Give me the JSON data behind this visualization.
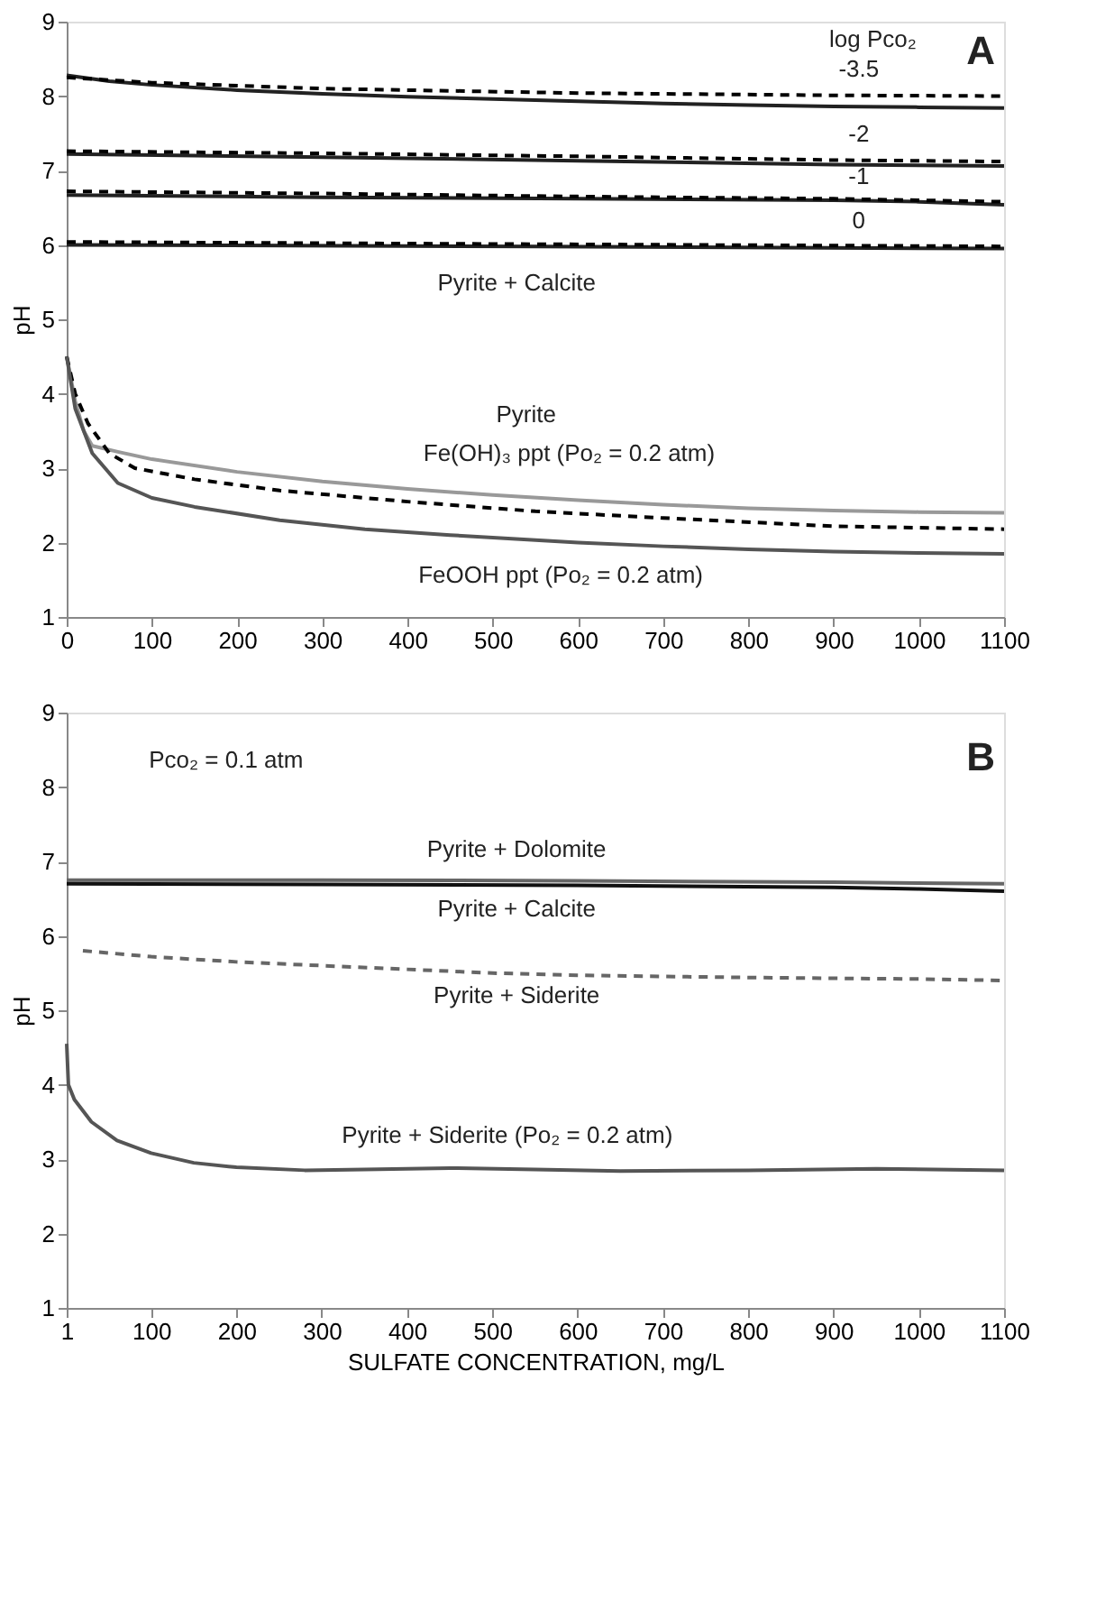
{
  "chart_data": [
    {
      "type": "line",
      "ylabel": "pH",
      "xlim": [
        0,
        1100
      ],
      "ylim": [
        1,
        9
      ],
      "xticks": [
        0,
        100,
        200,
        300,
        400,
        500,
        600,
        700,
        800,
        900,
        1000,
        1100
      ],
      "yticks": [
        1,
        2,
        3,
        4,
        5,
        6,
        7,
        8,
        9
      ],
      "grid": false,
      "series": [
        {
          "color": "#222222",
          "line_style": "solid",
          "x": [
            0,
            50,
            100,
            200,
            300,
            400,
            500,
            600,
            700,
            800,
            900,
            1000,
            1100
          ],
          "values": [
            8.28,
            8.2,
            8.15,
            8.08,
            8.03,
            7.99,
            7.96,
            7.93,
            7.9,
            7.88,
            7.86,
            7.85,
            7.84
          ]
        },
        {
          "color": "#000000",
          "line_style": "dashed",
          "x": [
            0,
            100,
            300,
            600,
            900,
            1100
          ],
          "values": [
            8.25,
            8.18,
            8.1,
            8.04,
            8.01,
            8.0
          ]
        },
        {
          "color": "#222222",
          "line_style": "solid",
          "x": [
            0,
            300,
            600,
            900,
            1100
          ],
          "values": [
            7.22,
            7.18,
            7.13,
            7.08,
            7.06
          ]
        },
        {
          "color": "#000000",
          "line_style": "dashed",
          "x": [
            0,
            300,
            600,
            900,
            1100
          ],
          "values": [
            7.26,
            7.23,
            7.19,
            7.14,
            7.12
          ]
        },
        {
          "color": "#222222",
          "line_style": "solid",
          "x": [
            0,
            300,
            600,
            900,
            1000,
            1100
          ],
          "values": [
            6.67,
            6.64,
            6.62,
            6.6,
            6.58,
            6.54
          ]
        },
        {
          "color": "#000000",
          "line_style": "dashed",
          "x": [
            0,
            300,
            600,
            900,
            1100
          ],
          "values": [
            6.72,
            6.69,
            6.65,
            6.62,
            6.58
          ]
        },
        {
          "color": "#222222",
          "line_style": "solid",
          "x": [
            0,
            550,
            1100
          ],
          "values": [
            6.0,
            5.98,
            5.95
          ]
        },
        {
          "color": "#000000",
          "line_style": "dashed",
          "x": [
            0,
            550,
            1100
          ],
          "values": [
            6.04,
            6.01,
            5.98
          ]
        },
        {
          "color": "#999999",
          "line_style": "solid",
          "x": [
            0,
            10,
            20,
            30,
            60,
            100,
            200,
            300,
            400,
            500,
            600,
            700,
            800,
            900,
            1000,
            1100
          ],
          "values": [
            4.5,
            3.9,
            3.5,
            3.3,
            3.22,
            3.12,
            2.95,
            2.82,
            2.72,
            2.64,
            2.57,
            2.51,
            2.46,
            2.43,
            2.41,
            2.4
          ]
        },
        {
          "color": "#000000",
          "line_style": "dashed",
          "x": [
            0,
            10,
            25,
            50,
            80,
            150,
            250,
            400,
            550,
            700,
            900,
            1100
          ],
          "values": [
            4.5,
            4.0,
            3.6,
            3.2,
            3.0,
            2.85,
            2.7,
            2.55,
            2.42,
            2.33,
            2.22,
            2.18
          ]
        },
        {
          "color": "#555555",
          "line_style": "solid",
          "x": [
            0,
            10,
            30,
            60,
            100,
            150,
            250,
            350,
            450,
            600,
            700,
            800,
            900,
            1000,
            1100
          ],
          "values": [
            4.5,
            3.8,
            3.2,
            2.8,
            2.6,
            2.48,
            2.3,
            2.18,
            2.1,
            2.0,
            1.95,
            1.91,
            1.88,
            1.86,
            1.85
          ]
        }
      ],
      "annotations": [
        "log Pco₂",
        "A",
        "-3.5",
        "-2",
        "-1",
        "0",
        "Pyrite + Calcite",
        "Pyrite",
        "Fe(OH)₃ ppt (Po₂ = 0.2 atm)",
        "FeOOH ppt (Po₂ = 0.2 atm)"
      ]
    },
    {
      "type": "line",
      "ylabel": "pH",
      "xlabel": "SULFATE CONCENTRATION, mg/L",
      "xlim": [
        1,
        1100
      ],
      "ylim": [
        1,
        9
      ],
      "xticks": [
        1,
        100,
        200,
        300,
        400,
        500,
        600,
        700,
        800,
        900,
        1000,
        1100
      ],
      "yticks": [
        1,
        2,
        3,
        4,
        5,
        6,
        7,
        8,
        9
      ],
      "grid": false,
      "series": [
        {
          "color": "#666666",
          "line_style": "solid",
          "x": [
            1,
            300,
            600,
            900,
            1100
          ],
          "values": [
            6.75,
            6.75,
            6.74,
            6.72,
            6.7
          ]
        },
        {
          "color": "#111111",
          "line_style": "solid",
          "x": [
            1,
            300,
            600,
            900,
            1000,
            1100
          ],
          "values": [
            6.7,
            6.69,
            6.68,
            6.65,
            6.63,
            6.6
          ]
        },
        {
          "color": "#666666",
          "line_style": "dashed",
          "x": [
            20,
            100,
            200,
            300,
            400,
            500,
            600,
            800,
            1000,
            1100
          ],
          "values": [
            5.8,
            5.72,
            5.65,
            5.6,
            5.55,
            5.5,
            5.47,
            5.44,
            5.42,
            5.4
          ]
        },
        {
          "color": "#555555",
          "line_style": "solid",
          "x": [
            1,
            3,
            10,
            30,
            60,
            100,
            150,
            200,
            280,
            350,
            450,
            550,
            650,
            800,
            950,
            1100
          ],
          "values": [
            4.55,
            4.0,
            3.8,
            3.5,
            3.25,
            3.08,
            2.95,
            2.89,
            2.85,
            2.86,
            2.88,
            2.86,
            2.84,
            2.85,
            2.87,
            2.85
          ]
        }
      ],
      "annotations": [
        "Pco₂ = 0.1 atm",
        "B",
        "Pyrite + Dolomite",
        "Pyrite + Calcite",
        "Pyrite + Siderite",
        "Pyrite + Siderite (Po₂ = 0.2 atm)"
      ]
    }
  ]
}
